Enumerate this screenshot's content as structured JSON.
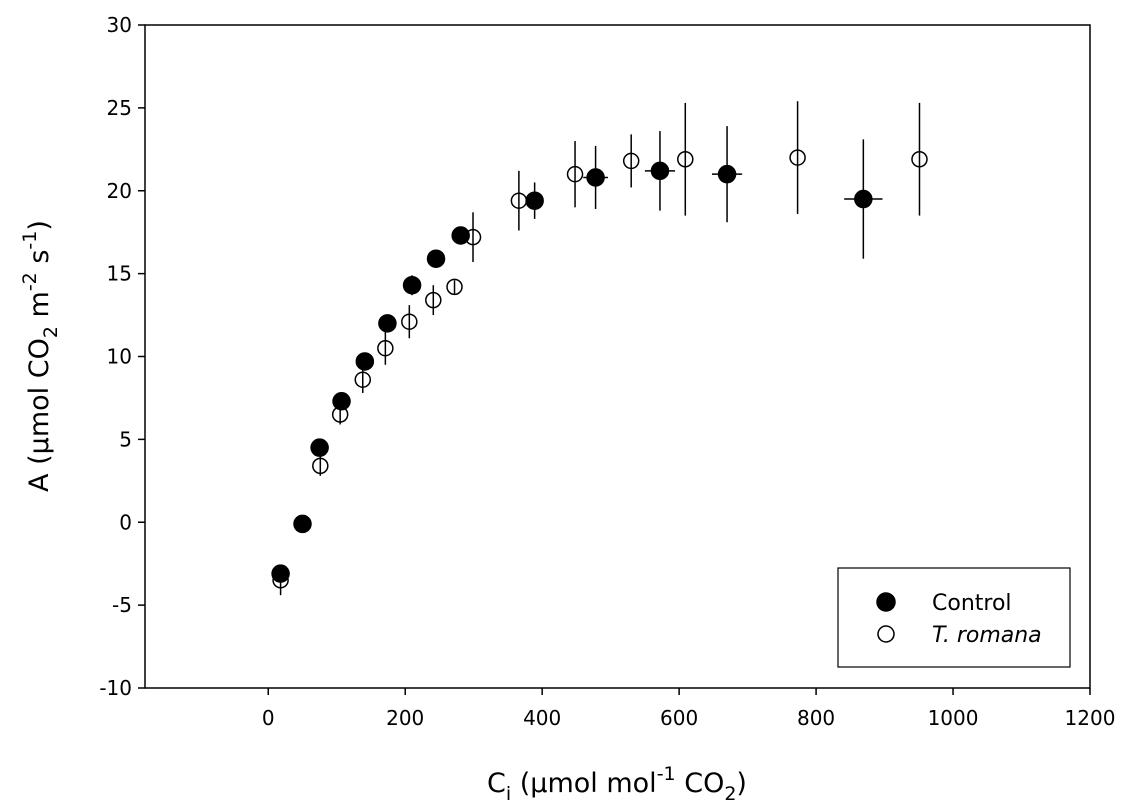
{
  "chart_data": {
    "type": "scatter",
    "xlabel": "C",
    "xlabel_sub": "i",
    "xlabel_rest_1": " (µmol mol",
    "xlabel_sup": "-1",
    "xlabel_rest_2": " CO",
    "xlabel_sub2": "2",
    "xlabel_rest_3": ")",
    "ylabel": "A (µmol CO",
    "ylabel_sub": "2",
    "ylabel_rest_1": " m",
    "ylabel_sup1": "-2",
    "ylabel_rest_2": " s",
    "ylabel_sup2": "-1",
    "ylabel_rest_3": ")",
    "xlim": [
      -180,
      1200
    ],
    "ylim": [
      -10,
      30
    ],
    "xticks": [
      0,
      200,
      400,
      600,
      800,
      1000,
      1200
    ],
    "yticks": [
      -10,
      -5,
      0,
      5,
      10,
      15,
      20,
      25,
      30
    ],
    "grid": false,
    "legend_position": "bottom-right",
    "series": [
      {
        "name": "Control",
        "marker": "filled-circle",
        "color": "#000000",
        "points": [
          {
            "x": 18,
            "y": -3.1,
            "xerr": 0,
            "yerr": 0.3
          },
          {
            "x": 50,
            "y": -0.1,
            "xerr": 0,
            "yerr": 0.3
          },
          {
            "x": 75,
            "y": 4.5,
            "xerr": 0,
            "yerr": 0.3
          },
          {
            "x": 107,
            "y": 7.3,
            "xerr": 0,
            "yerr": 0.4
          },
          {
            "x": 141,
            "y": 9.7,
            "xerr": 0,
            "yerr": 0.5
          },
          {
            "x": 174,
            "y": 12.0,
            "xerr": 0,
            "yerr": 0.5
          },
          {
            "x": 210,
            "y": 14.3,
            "xerr": 0,
            "yerr": 0.6
          },
          {
            "x": 245,
            "y": 15.9,
            "xerr": 0,
            "yerr": 0.5
          },
          {
            "x": 281,
            "y": 17.3,
            "xerr": 0,
            "yerr": 0.4
          },
          {
            "x": 389,
            "y": 19.4,
            "xerr": 6,
            "yerr": 1.1
          },
          {
            "x": 478,
            "y": 20.8,
            "xerr": 18,
            "yerr": 1.9
          },
          {
            "x": 572,
            "y": 21.2,
            "xerr": 22,
            "yerr": 2.4
          },
          {
            "x": 670,
            "y": 21.0,
            "xerr": 22,
            "yerr": 2.9
          },
          {
            "x": 869,
            "y": 19.5,
            "xerr": 28,
            "yerr": 3.6
          }
        ]
      },
      {
        "name": "T. romana",
        "marker": "open-circle",
        "color": "#000000",
        "points": [
          {
            "x": 18,
            "y": -3.5,
            "xerr": 0,
            "yerr": 0.9
          },
          {
            "x": 76,
            "y": 3.4,
            "xerr": 0,
            "yerr": 0.6
          },
          {
            "x": 105,
            "y": 6.5,
            "xerr": 0,
            "yerr": 0.6
          },
          {
            "x": 138,
            "y": 8.6,
            "xerr": 0,
            "yerr": 0.8
          },
          {
            "x": 171,
            "y": 10.5,
            "xerr": 0,
            "yerr": 1.0
          },
          {
            "x": 206,
            "y": 12.1,
            "xerr": 0,
            "yerr": 1.0
          },
          {
            "x": 241,
            "y": 13.4,
            "xerr": 0,
            "yerr": 0.9
          },
          {
            "x": 272,
            "y": 14.2,
            "xerr": 0,
            "yerr": 0.4
          },
          {
            "x": 299,
            "y": 17.2,
            "xerr": 0,
            "yerr": 1.5
          },
          {
            "x": 366,
            "y": 19.4,
            "xerr": 0,
            "yerr": 1.8
          },
          {
            "x": 448,
            "y": 21.0,
            "xerr": 0,
            "yerr": 2.0
          },
          {
            "x": 530,
            "y": 21.8,
            "xerr": 0,
            "yerr": 1.6
          },
          {
            "x": 609,
            "y": 21.9,
            "xerr": 0,
            "yerr": 3.4
          },
          {
            "x": 773,
            "y": 22.0,
            "xerr": 0,
            "yerr": 3.4
          },
          {
            "x": 951,
            "y": 21.9,
            "xerr": 0,
            "yerr": 3.4
          }
        ]
      }
    ]
  }
}
